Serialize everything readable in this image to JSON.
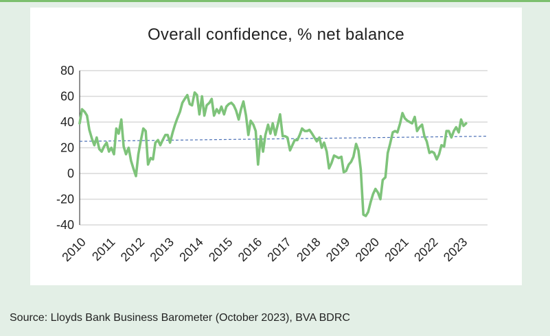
{
  "source_note": "Source: Lloyds Bank Business Barometer (October 2023), BVA BDRC",
  "colors": {
    "background": "#e3efe6",
    "card": "#ffffff",
    "series_line": "#7ec37a",
    "trend_line": "#4a6fb5",
    "gridline": "#d9d9d9",
    "axis": "#222222"
  },
  "chart_data": {
    "type": "line",
    "title": "Overall confidence, % net balance",
    "xlabel": "",
    "ylabel": "",
    "xlim": [
      2010,
      2023.9
    ],
    "ylim": [
      -40,
      80
    ],
    "yticks": [
      80,
      60,
      40,
      20,
      0,
      -20,
      -40
    ],
    "xtick_labels": [
      "2010",
      "2011",
      "2012",
      "2013",
      "2014",
      "2015",
      "2016",
      "2017",
      "2018",
      "2019",
      "2020",
      "2021",
      "2022",
      "2023"
    ],
    "grid": true,
    "legend": "none",
    "series": [
      {
        "values": [
          [
            2010.0,
            39
          ],
          [
            2010.08,
            50
          ],
          [
            2010.17,
            48
          ],
          [
            2010.25,
            45
          ],
          [
            2010.33,
            34
          ],
          [
            2010.42,
            27
          ],
          [
            2010.5,
            22
          ],
          [
            2010.58,
            28
          ],
          [
            2010.67,
            19
          ],
          [
            2010.75,
            17
          ],
          [
            2010.83,
            21
          ],
          [
            2010.92,
            24
          ],
          [
            2011.0,
            17
          ],
          [
            2011.08,
            20
          ],
          [
            2011.17,
            15
          ],
          [
            2011.25,
            35
          ],
          [
            2011.33,
            31
          ],
          [
            2011.42,
            42
          ],
          [
            2011.5,
            21
          ],
          [
            2011.58,
            15
          ],
          [
            2011.67,
            20
          ],
          [
            2011.75,
            10
          ],
          [
            2011.83,
            4
          ],
          [
            2011.92,
            -2
          ],
          [
            2012.0,
            15
          ],
          [
            2012.08,
            25
          ],
          [
            2012.17,
            35
          ],
          [
            2012.25,
            33
          ],
          [
            2012.33,
            7
          ],
          [
            2012.42,
            12
          ],
          [
            2012.5,
            11
          ],
          [
            2012.58,
            24
          ],
          [
            2012.67,
            26
          ],
          [
            2012.75,
            22
          ],
          [
            2012.83,
            26
          ],
          [
            2012.92,
            30
          ],
          [
            2013.0,
            30
          ],
          [
            2013.08,
            24
          ],
          [
            2013.17,
            32
          ],
          [
            2013.25,
            38
          ],
          [
            2013.33,
            43
          ],
          [
            2013.42,
            48
          ],
          [
            2013.5,
            55
          ],
          [
            2013.58,
            58
          ],
          [
            2013.67,
            61
          ],
          [
            2013.75,
            54
          ],
          [
            2013.83,
            53
          ],
          [
            2013.92,
            63
          ],
          [
            2014.0,
            61
          ],
          [
            2014.08,
            46
          ],
          [
            2014.17,
            60
          ],
          [
            2014.25,
            45
          ],
          [
            2014.33,
            53
          ],
          [
            2014.42,
            55
          ],
          [
            2014.5,
            58
          ],
          [
            2014.58,
            45
          ],
          [
            2014.67,
            50
          ],
          [
            2014.75,
            47
          ],
          [
            2014.83,
            52
          ],
          [
            2014.92,
            46
          ],
          [
            2015.0,
            52
          ],
          [
            2015.08,
            54
          ],
          [
            2015.17,
            55
          ],
          [
            2015.25,
            53
          ],
          [
            2015.33,
            49
          ],
          [
            2015.42,
            42
          ],
          [
            2015.5,
            50
          ],
          [
            2015.58,
            56
          ],
          [
            2015.67,
            45
          ],
          [
            2015.75,
            30
          ],
          [
            2015.83,
            41
          ],
          [
            2015.92,
            38
          ],
          [
            2016.0,
            33
          ],
          [
            2016.08,
            7
          ],
          [
            2016.17,
            29
          ],
          [
            2016.25,
            17
          ],
          [
            2016.33,
            30
          ],
          [
            2016.42,
            38
          ],
          [
            2016.5,
            31
          ],
          [
            2016.58,
            39
          ],
          [
            2016.67,
            30
          ],
          [
            2016.75,
            38
          ],
          [
            2016.83,
            46
          ],
          [
            2016.92,
            29
          ],
          [
            2017.0,
            29
          ],
          [
            2017.08,
            28
          ],
          [
            2017.17,
            18
          ],
          [
            2017.25,
            22
          ],
          [
            2017.33,
            26
          ],
          [
            2017.42,
            26
          ],
          [
            2017.5,
            30
          ],
          [
            2017.58,
            35
          ],
          [
            2017.67,
            33
          ],
          [
            2017.75,
            33
          ],
          [
            2017.83,
            34
          ],
          [
            2017.92,
            31
          ],
          [
            2018.0,
            28
          ],
          [
            2018.08,
            25
          ],
          [
            2018.17,
            28
          ],
          [
            2018.25,
            20
          ],
          [
            2018.33,
            24
          ],
          [
            2018.42,
            17
          ],
          [
            2018.5,
            4
          ],
          [
            2018.58,
            8
          ],
          [
            2018.67,
            14
          ],
          [
            2018.75,
            13
          ],
          [
            2018.83,
            12
          ],
          [
            2018.92,
            13
          ],
          [
            2019.0,
            1
          ],
          [
            2019.08,
            2
          ],
          [
            2019.17,
            7
          ],
          [
            2019.25,
            9
          ],
          [
            2019.33,
            13
          ],
          [
            2019.42,
            23
          ],
          [
            2019.5,
            18
          ],
          [
            2019.58,
            3
          ],
          [
            2019.67,
            -32
          ],
          [
            2019.75,
            -33
          ],
          [
            2019.83,
            -30
          ],
          [
            2019.92,
            -22
          ],
          [
            2020.0,
            -16
          ],
          [
            2020.08,
            -12
          ],
          [
            2020.17,
            -15
          ],
          [
            2020.25,
            -20
          ],
          [
            2020.33,
            -5
          ],
          [
            2020.42,
            -3
          ],
          [
            2020.5,
            16
          ],
          [
            2020.58,
            23
          ],
          [
            2020.67,
            32
          ],
          [
            2020.75,
            33
          ],
          [
            2020.83,
            32
          ],
          [
            2020.92,
            39
          ],
          [
            2021.0,
            47
          ],
          [
            2021.08,
            43
          ],
          [
            2021.17,
            41
          ],
          [
            2021.25,
            40
          ],
          [
            2021.33,
            39
          ],
          [
            2021.42,
            44
          ],
          [
            2021.5,
            33
          ],
          [
            2021.58,
            36
          ],
          [
            2021.67,
            38
          ],
          [
            2021.75,
            29
          ],
          [
            2021.83,
            25
          ],
          [
            2021.92,
            16
          ],
          [
            2022.0,
            17
          ],
          [
            2022.08,
            16
          ],
          [
            2022.17,
            11
          ],
          [
            2022.25,
            15
          ],
          [
            2022.33,
            22
          ],
          [
            2022.42,
            21
          ],
          [
            2022.5,
            33
          ],
          [
            2022.58,
            33
          ],
          [
            2022.67,
            28
          ],
          [
            2022.75,
            33
          ],
          [
            2022.83,
            36
          ],
          [
            2022.92,
            32
          ],
          [
            2023.0,
            42
          ],
          [
            2023.08,
            37
          ],
          [
            2023.17,
            39
          ]
        ]
      },
      {
        "values": [
          [
            2010.0,
            25
          ],
          [
            2023.9,
            29
          ]
        ]
      }
    ]
  }
}
